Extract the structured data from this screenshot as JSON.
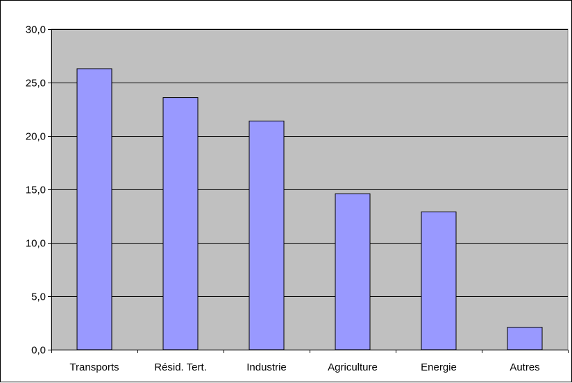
{
  "chart_data": {
    "type": "bar",
    "title": "",
    "xlabel": "",
    "ylabel": "",
    "categories": [
      "Transports",
      "Résid. Tert.",
      "Industrie",
      "Agriculture",
      "Energie",
      "Autres"
    ],
    "values": [
      26.3,
      23.6,
      21.4,
      14.6,
      12.9,
      2.1
    ],
    "ylim": [
      0,
      30
    ],
    "yticks": [
      0,
      5,
      10,
      15,
      20,
      25,
      30
    ],
    "ytick_labels": [
      "0,0",
      "5,0",
      "10,0",
      "15,0",
      "20,0",
      "25,0",
      "30,0"
    ],
    "grid": true,
    "legend": "none",
    "colors": {
      "plot_background": "#c0c0c0",
      "bar_fill": "#9999ff",
      "bar_stroke": "#000000",
      "grid": "#000000"
    }
  }
}
